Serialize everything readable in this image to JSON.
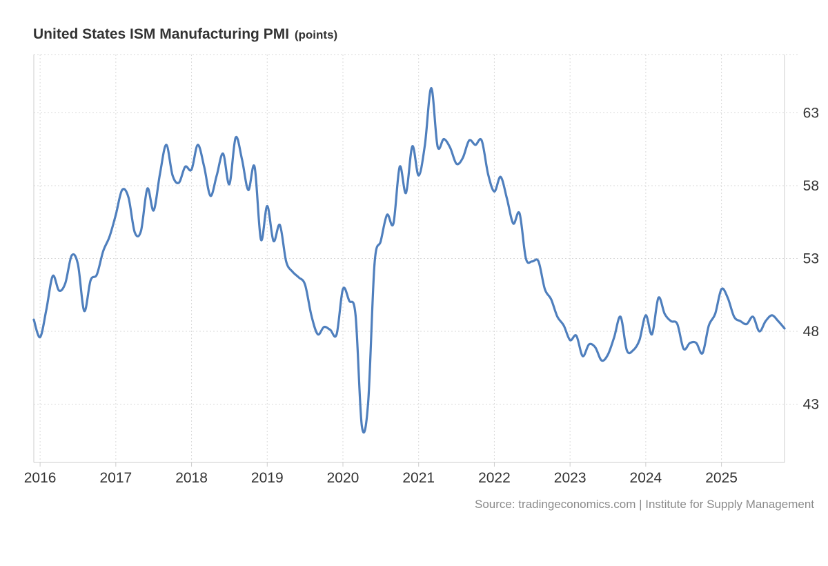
{
  "chart_data": {
    "type": "line",
    "title": "United States ISM Manufacturing PMI",
    "unit": "(points)",
    "xlabel": "",
    "ylabel": "",
    "x_ticks": [
      "2016",
      "2017",
      "2018",
      "2019",
      "2020",
      "2021",
      "2022",
      "2023",
      "2024",
      "2025"
    ],
    "y_ticks": [
      43,
      48,
      53,
      58,
      63
    ],
    "ylim": [
      39,
      67
    ],
    "xlim": [
      2015.917,
      2025.833
    ],
    "grid": true,
    "line_color": "#4f7fbd",
    "series": [
      {
        "values": [
          {
            "x": 2015.917,
            "y": 48.8
          },
          {
            "x": 2016.0,
            "y": 47.6
          },
          {
            "x": 2016.083,
            "y": 49.5
          },
          {
            "x": 2016.167,
            "y": 51.8
          },
          {
            "x": 2016.25,
            "y": 50.8
          },
          {
            "x": 2016.333,
            "y": 51.3
          },
          {
            "x": 2016.417,
            "y": 53.2
          },
          {
            "x": 2016.5,
            "y": 52.6
          },
          {
            "x": 2016.583,
            "y": 49.4
          },
          {
            "x": 2016.667,
            "y": 51.5
          },
          {
            "x": 2016.75,
            "y": 51.9
          },
          {
            "x": 2016.833,
            "y": 53.5
          },
          {
            "x": 2016.917,
            "y": 54.5
          },
          {
            "x": 2017.0,
            "y": 56.0
          },
          {
            "x": 2017.083,
            "y": 57.7
          },
          {
            "x": 2017.167,
            "y": 57.2
          },
          {
            "x": 2017.25,
            "y": 54.8
          },
          {
            "x": 2017.333,
            "y": 54.9
          },
          {
            "x": 2017.417,
            "y": 57.8
          },
          {
            "x": 2017.5,
            "y": 56.3
          },
          {
            "x": 2017.583,
            "y": 58.8
          },
          {
            "x": 2017.667,
            "y": 60.8
          },
          {
            "x": 2017.75,
            "y": 58.7
          },
          {
            "x": 2017.833,
            "y": 58.2
          },
          {
            "x": 2017.917,
            "y": 59.3
          },
          {
            "x": 2018.0,
            "y": 59.1
          },
          {
            "x": 2018.083,
            "y": 60.8
          },
          {
            "x": 2018.167,
            "y": 59.3
          },
          {
            "x": 2018.25,
            "y": 57.3
          },
          {
            "x": 2018.333,
            "y": 58.7
          },
          {
            "x": 2018.417,
            "y": 60.2
          },
          {
            "x": 2018.5,
            "y": 58.1
          },
          {
            "x": 2018.583,
            "y": 61.3
          },
          {
            "x": 2018.667,
            "y": 59.8
          },
          {
            "x": 2018.75,
            "y": 57.7
          },
          {
            "x": 2018.833,
            "y": 59.3
          },
          {
            "x": 2018.917,
            "y": 54.3
          },
          {
            "x": 2019.0,
            "y": 56.6
          },
          {
            "x": 2019.083,
            "y": 54.2
          },
          {
            "x": 2019.167,
            "y": 55.3
          },
          {
            "x": 2019.25,
            "y": 52.8
          },
          {
            "x": 2019.333,
            "y": 52.1
          },
          {
            "x": 2019.417,
            "y": 51.7
          },
          {
            "x": 2019.5,
            "y": 51.2
          },
          {
            "x": 2019.583,
            "y": 49.1
          },
          {
            "x": 2019.667,
            "y": 47.8
          },
          {
            "x": 2019.75,
            "y": 48.3
          },
          {
            "x": 2019.833,
            "y": 48.1
          },
          {
            "x": 2019.917,
            "y": 47.8
          },
          {
            "x": 2020.0,
            "y": 50.9
          },
          {
            "x": 2020.083,
            "y": 50.1
          },
          {
            "x": 2020.167,
            "y": 49.1
          },
          {
            "x": 2020.25,
            "y": 41.5
          },
          {
            "x": 2020.333,
            "y": 43.1
          },
          {
            "x": 2020.417,
            "y": 52.6
          },
          {
            "x": 2020.5,
            "y": 54.2
          },
          {
            "x": 2020.583,
            "y": 56.0
          },
          {
            "x": 2020.667,
            "y": 55.4
          },
          {
            "x": 2020.75,
            "y": 59.3
          },
          {
            "x": 2020.833,
            "y": 57.5
          },
          {
            "x": 2020.917,
            "y": 60.7
          },
          {
            "x": 2021.0,
            "y": 58.7
          },
          {
            "x": 2021.083,
            "y": 60.8
          },
          {
            "x": 2021.167,
            "y": 64.7
          },
          {
            "x": 2021.25,
            "y": 60.7
          },
          {
            "x": 2021.333,
            "y": 61.2
          },
          {
            "x": 2021.417,
            "y": 60.6
          },
          {
            "x": 2021.5,
            "y": 59.5
          },
          {
            "x": 2021.583,
            "y": 59.9
          },
          {
            "x": 2021.667,
            "y": 61.1
          },
          {
            "x": 2021.75,
            "y": 60.8
          },
          {
            "x": 2021.833,
            "y": 61.1
          },
          {
            "x": 2021.917,
            "y": 58.8
          },
          {
            "x": 2022.0,
            "y": 57.6
          },
          {
            "x": 2022.083,
            "y": 58.6
          },
          {
            "x": 2022.167,
            "y": 57.1
          },
          {
            "x": 2022.25,
            "y": 55.4
          },
          {
            "x": 2022.333,
            "y": 56.1
          },
          {
            "x": 2022.417,
            "y": 53.0
          },
          {
            "x": 2022.5,
            "y": 52.8
          },
          {
            "x": 2022.583,
            "y": 52.8
          },
          {
            "x": 2022.667,
            "y": 50.9
          },
          {
            "x": 2022.75,
            "y": 50.2
          },
          {
            "x": 2022.833,
            "y": 49.0
          },
          {
            "x": 2022.917,
            "y": 48.4
          },
          {
            "x": 2023.0,
            "y": 47.4
          },
          {
            "x": 2023.083,
            "y": 47.7
          },
          {
            "x": 2023.167,
            "y": 46.3
          },
          {
            "x": 2023.25,
            "y": 47.1
          },
          {
            "x": 2023.333,
            "y": 46.9
          },
          {
            "x": 2023.417,
            "y": 46.0
          },
          {
            "x": 2023.5,
            "y": 46.4
          },
          {
            "x": 2023.583,
            "y": 47.6
          },
          {
            "x": 2023.667,
            "y": 49.0
          },
          {
            "x": 2023.75,
            "y": 46.7
          },
          {
            "x": 2023.833,
            "y": 46.7
          },
          {
            "x": 2023.917,
            "y": 47.4
          },
          {
            "x": 2024.0,
            "y": 49.1
          },
          {
            "x": 2024.083,
            "y": 47.8
          },
          {
            "x": 2024.167,
            "y": 50.3
          },
          {
            "x": 2024.25,
            "y": 49.2
          },
          {
            "x": 2024.333,
            "y": 48.7
          },
          {
            "x": 2024.417,
            "y": 48.5
          },
          {
            "x": 2024.5,
            "y": 46.8
          },
          {
            "x": 2024.583,
            "y": 47.2
          },
          {
            "x": 2024.667,
            "y": 47.2
          },
          {
            "x": 2024.75,
            "y": 46.5
          },
          {
            "x": 2024.833,
            "y": 48.4
          },
          {
            "x": 2024.917,
            "y": 49.2
          },
          {
            "x": 2025.0,
            "y": 50.9
          },
          {
            "x": 2025.083,
            "y": 50.3
          },
          {
            "x": 2025.167,
            "y": 49.0
          },
          {
            "x": 2025.25,
            "y": 48.7
          },
          {
            "x": 2025.333,
            "y": 48.5
          },
          {
            "x": 2025.417,
            "y": 49.0
          },
          {
            "x": 2025.5,
            "y": 48.0
          },
          {
            "x": 2025.583,
            "y": 48.7
          },
          {
            "x": 2025.667,
            "y": 49.1
          },
          {
            "x": 2025.75,
            "y": 48.7
          },
          {
            "x": 2025.833,
            "y": 48.2
          }
        ]
      }
    ]
  },
  "source": "Source: tradingeconomics.com | Institute for Supply Management"
}
